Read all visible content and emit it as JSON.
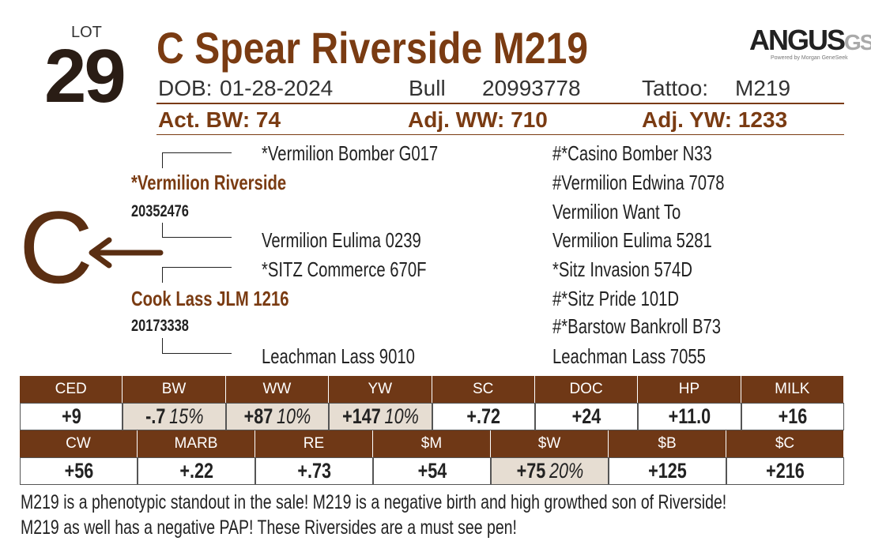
{
  "lot": {
    "label": "LOT",
    "number": "29"
  },
  "title": "C Spear Riverside M219",
  "logo": {
    "brand": "ANGUS",
    "suffix": "GS",
    "tagline": "Powered by Morgan GeneSeek"
  },
  "info": {
    "dob_label": "DOB:",
    "dob": "01-28-2024",
    "sex": "Bull",
    "registration": "20993778",
    "tattoo_label": "Tattoo:",
    "tattoo": "M219"
  },
  "measures": [
    "Act. BW: 74",
    "Adj. WW: 710",
    "Adj. YW: 1233"
  ],
  "pedigree": {
    "sire": {
      "name": "*Vermilion Riverside",
      "registration": "20352476"
    },
    "dam": {
      "name": "Cook Lass JLM 1216",
      "registration": "20173338"
    },
    "sire_sire": "*Vermilion Bomber G017",
    "sire_dam": "Vermilion Eulima 0239",
    "dam_sire": "*SITZ Commerce 670F",
    "dam_dam": "Leachman Lass 9010",
    "great_grandparents": [
      "#*Casino Bomber N33",
      "#Vermilion Edwina 7078",
      "Vermilion Want To",
      "Vermilion Eulima 5281",
      "*Sitz Invasion 574D",
      "#*Sitz Pride 101D",
      "#*Barstow Bankroll B73",
      "Leachman Lass 7055"
    ]
  },
  "breed_code": "C",
  "epds": [
    [
      {
        "trait": "CED",
        "value": "+9"
      },
      {
        "trait": "BW",
        "value": "-.7",
        "percentile": "15%"
      },
      {
        "trait": "WW",
        "value": "+87",
        "percentile": "10%"
      },
      {
        "trait": "YW",
        "value": "+147",
        "percentile": "10%"
      },
      {
        "trait": "SC",
        "value": "+.72"
      },
      {
        "trait": "DOC",
        "value": "+24"
      },
      {
        "trait": "HP",
        "value": "+11.0"
      },
      {
        "trait": "MILK",
        "value": "+16"
      }
    ],
    [
      {
        "trait": "CW",
        "value": "+56"
      },
      {
        "trait": "MARB",
        "value": "+.22"
      },
      {
        "trait": "RE",
        "value": "+.73"
      },
      {
        "trait": "$M",
        "value": "+54"
      },
      {
        "trait": "$W",
        "value": "+75",
        "percentile": "20%"
      },
      {
        "trait": "$B",
        "value": "+125"
      },
      {
        "trait": "$C",
        "value": "+216"
      }
    ]
  ],
  "comment": [
    "M219 is a phenotypic standout in the sale! M219 is a negative birth and high growthed son of Riverside!",
    "M219 as well has a negative PAP! These Riversides are a must see pen!"
  ]
}
